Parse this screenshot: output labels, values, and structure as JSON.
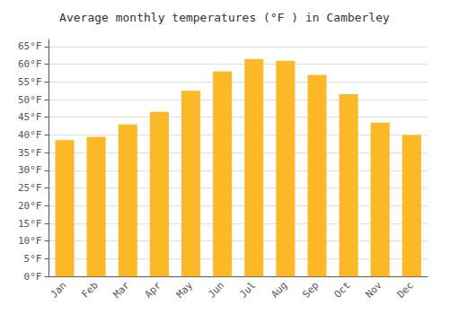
{
  "chart_data": {
    "type": "bar",
    "title": "Average monthly temperatures (°F ) in Camberley",
    "categories": [
      "Jan",
      "Feb",
      "Mar",
      "Apr",
      "May",
      "Jun",
      "Jul",
      "Aug",
      "Sep",
      "Oct",
      "Nov",
      "Dec"
    ],
    "values": [
      38.5,
      39.5,
      43.0,
      46.5,
      52.5,
      58.0,
      61.5,
      61.0,
      57.0,
      51.5,
      43.5,
      40.0
    ],
    "color": "#FDB827",
    "ylim": [
      0,
      67
    ],
    "yticks": [
      {
        "value": 0,
        "label": "0°F"
      },
      {
        "value": 5,
        "label": "5°F"
      },
      {
        "value": 10,
        "label": "10°F"
      },
      {
        "value": 15,
        "label": "15°F"
      },
      {
        "value": 20,
        "label": "20°F"
      },
      {
        "value": 25,
        "label": "25°F"
      },
      {
        "value": 30,
        "label": "30°F"
      },
      {
        "value": 35,
        "label": "35°F"
      },
      {
        "value": 40,
        "label": "40°F"
      },
      {
        "value": 45,
        "label": "45°F"
      },
      {
        "value": 50,
        "label": "50°F"
      },
      {
        "value": 55,
        "label": "55°F"
      },
      {
        "value": 60,
        "label": "60°F"
      },
      {
        "value": 65,
        "label": "65°F"
      }
    ],
    "grid": true
  }
}
